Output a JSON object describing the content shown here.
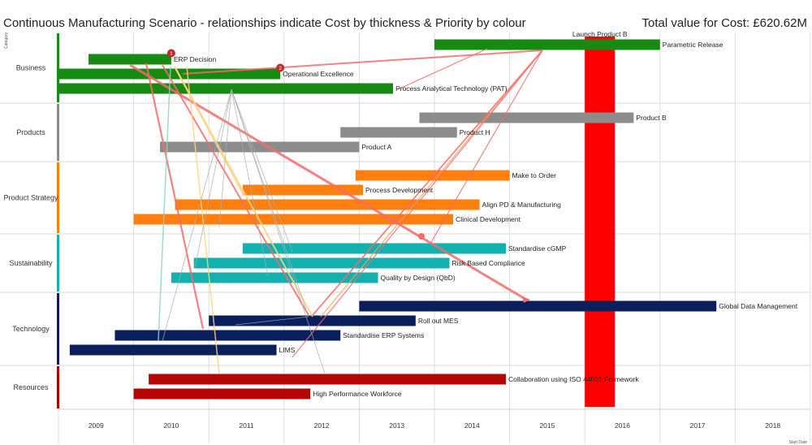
{
  "title": "Continuous Manufacturing Scenario - relationships indicate Cost by thickness & Priority by colour",
  "total_label": "Total value for Cost: £620.62M",
  "chart_data": {
    "type": "gantt",
    "y_axis_title": "Category",
    "x_axis_title": "Start Date",
    "years": [
      "2009",
      "2010",
      "2011",
      "2012",
      "2013",
      "2014",
      "2015",
      "2016",
      "2017",
      "2018"
    ],
    "x_range": [
      2008.5,
      2018.5
    ],
    "categories": [
      {
        "name": "Business",
        "color": "#1a8a1a",
        "bar_color": "#178a12"
      },
      {
        "name": "Products",
        "color": "#8c8c8c",
        "bar_color": "#8c8c8c"
      },
      {
        "name": "Product Strategy",
        "color": "#ff8000",
        "bar_color": "#ff7f0e"
      },
      {
        "name": "Sustainability",
        "color": "#12b0b0",
        "bar_color": "#13b0b0"
      },
      {
        "name": "Technology",
        "color": "#0a1f5c",
        "bar_color": "#0a1f5c"
      },
      {
        "name": "Resources",
        "color": "#b30000",
        "bar_color": "#b50505"
      }
    ],
    "tasks": [
      {
        "label": "Parametric Release",
        "category": 0,
        "row": 0,
        "start": 2013.5,
        "end": 2016.5
      },
      {
        "label": "ERP Decision",
        "category": 0,
        "row": 1,
        "start": 2008.9,
        "end": 2010.0,
        "badge": "1"
      },
      {
        "label": "Operational Excellence",
        "category": 0,
        "row": 2,
        "start": 2008.5,
        "end": 2011.45,
        "badge": "2"
      },
      {
        "label": "Process Analytical Technology (PAT)",
        "category": 0,
        "row": 3,
        "start": 2008.5,
        "end": 2012.95
      },
      {
        "label": "Product B",
        "category": 1,
        "row": 0,
        "start": 2013.3,
        "end": 2016.15
      },
      {
        "label": "Product H",
        "category": 1,
        "row": 1,
        "start": 2012.25,
        "end": 2013.8
      },
      {
        "label": "Product A",
        "category": 1,
        "row": 2,
        "start": 2009.85,
        "end": 2012.5
      },
      {
        "label": "Make to Order",
        "category": 2,
        "row": 0,
        "start": 2012.45,
        "end": 2014.5
      },
      {
        "label": "Process Development",
        "category": 2,
        "row": 1,
        "start": 2010.95,
        "end": 2012.55
      },
      {
        "label": "Align PD & Manufacturing",
        "category": 2,
        "row": 2,
        "start": 2010.05,
        "end": 2014.1
      },
      {
        "label": "Clinical Development",
        "category": 2,
        "row": 3,
        "start": 2009.5,
        "end": 2013.75
      },
      {
        "label": "Standardise cGMP",
        "category": 3,
        "row": 0,
        "start": 2010.95,
        "end": 2014.45
      },
      {
        "label": "Risk Based Compliance",
        "category": 3,
        "row": 1,
        "start": 2010.3,
        "end": 2013.7
      },
      {
        "label": "Quality by Design (QbD)",
        "category": 3,
        "row": 2,
        "start": 2010.0,
        "end": 2012.75
      },
      {
        "label": "Global Data Management",
        "category": 4,
        "row": 0,
        "start": 2012.5,
        "end": 2017.25
      },
      {
        "label": "Roll out MES",
        "category": 4,
        "row": 1,
        "start": 2010.5,
        "end": 2013.25
      },
      {
        "label": "Standardise ERP Systems",
        "category": 4,
        "row": 2,
        "start": 2009.25,
        "end": 2012.25
      },
      {
        "label": "LIMS",
        "category": 4,
        "row": 3,
        "start": 2008.65,
        "end": 2011.4
      },
      {
        "label": "Collaboration using ISO 44001 Framework",
        "category": 5,
        "row": 0,
        "start": 2009.7,
        "end": 2014.45
      },
      {
        "label": "High Performance Workforce",
        "category": 5,
        "row": 1,
        "start": 2009.5,
        "end": 2011.85
      }
    ],
    "milestones": [
      {
        "label": "Launch Product B",
        "start": 2015.5,
        "end": 2015.9,
        "color": "#ff0000"
      }
    ]
  }
}
